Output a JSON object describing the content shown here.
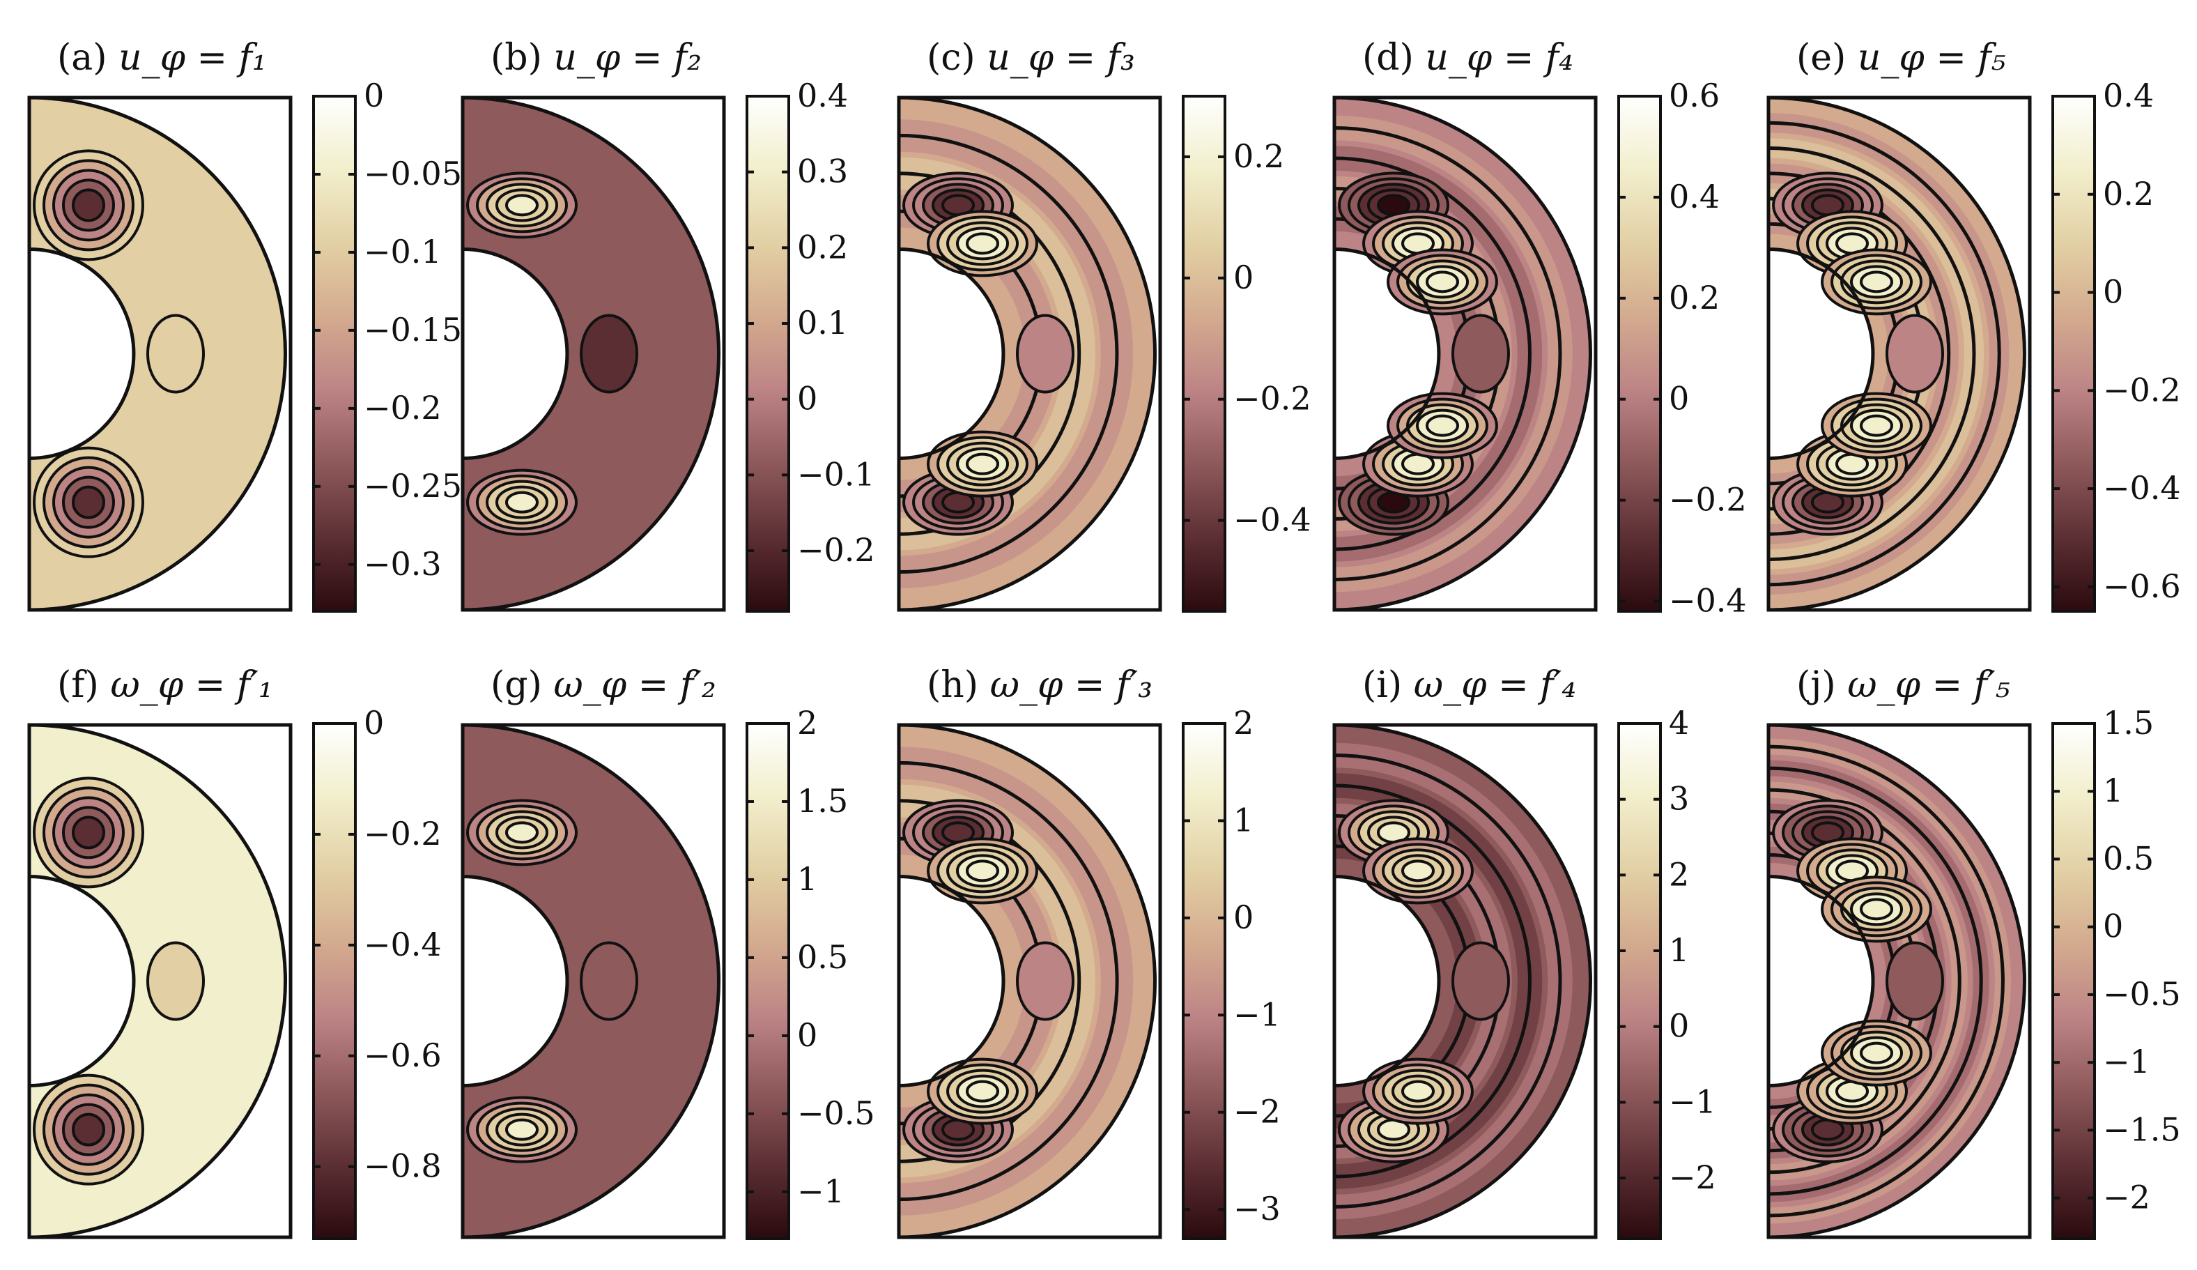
{
  "colormap": [
    "#2a0a0e",
    "#5b2e33",
    "#8f5a5c",
    "#bd8486",
    "#d3aa8e",
    "#e2cfa4",
    "#f2efcd",
    "#ffffff"
  ],
  "chart_data": [
    {
      "id": "a",
      "type": "heatmap",
      "tag": "(a)",
      "title": "u_φ = f₁",
      "colorbar": {
        "min": -0.33,
        "max": 0,
        "ticks": [
          0,
          -0.05,
          -0.1,
          -0.15,
          -0.2,
          -0.25,
          -0.3
        ],
        "labels": [
          "0",
          "−0.05",
          "−0.1",
          "−0.15",
          "−0.2",
          "−0.25",
          "−0.3"
        ]
      }
    },
    {
      "id": "b",
      "type": "heatmap",
      "tag": "(b)",
      "title": "u_φ = f₂",
      "colorbar": {
        "min": -0.28,
        "max": 0.4,
        "ticks": [
          0.4,
          0.3,
          0.2,
          0.1,
          0,
          -0.1,
          -0.2
        ],
        "labels": [
          "0.4",
          "0.3",
          "0.2",
          "0.1",
          "0",
          "−0.1",
          "−0.2"
        ]
      }
    },
    {
      "id": "c",
      "type": "heatmap",
      "tag": "(c)",
      "title": "u_φ = f₃",
      "colorbar": {
        "min": -0.55,
        "max": 0.3,
        "ticks": [
          0.2,
          0,
          -0.2,
          -0.4
        ],
        "labels": [
          "0.2",
          "0",
          "−0.2",
          "−0.4"
        ]
      }
    },
    {
      "id": "d",
      "type": "heatmap",
      "tag": "(d)",
      "title": "u_φ = f₄",
      "colorbar": {
        "min": -0.42,
        "max": 0.6,
        "ticks": [
          0.6,
          0.4,
          0.2,
          0,
          -0.2,
          -0.4
        ],
        "labels": [
          "0.6",
          "0.4",
          "0.2",
          "0",
          "−0.2",
          "−0.4"
        ]
      }
    },
    {
      "id": "e",
      "type": "heatmap",
      "tag": "(e)",
      "title": "u_φ = f₅",
      "colorbar": {
        "min": -0.65,
        "max": 0.4,
        "ticks": [
          0.4,
          0.2,
          0,
          -0.2,
          -0.4,
          -0.6
        ],
        "labels": [
          "0.4",
          "0.2",
          "0",
          "−0.2",
          "−0.4",
          "−0.6"
        ]
      }
    },
    {
      "id": "f",
      "type": "heatmap",
      "tag": "(f)",
      "title": "ω_φ = f′₁",
      "colorbar": {
        "min": -0.93,
        "max": 0,
        "ticks": [
          0,
          -0.2,
          -0.4,
          -0.6,
          -0.8
        ],
        "labels": [
          "0",
          "−0.2",
          "−0.4",
          "−0.6",
          "−0.8"
        ]
      }
    },
    {
      "id": "g",
      "type": "heatmap",
      "tag": "(g)",
      "title": "ω_φ = f′₂",
      "colorbar": {
        "min": -1.3,
        "max": 2,
        "ticks": [
          2,
          1.5,
          1,
          0.5,
          0,
          -0.5,
          -1
        ],
        "labels": [
          "2",
          "1.5",
          "1",
          "0.5",
          "0",
          "−0.5",
          "−1"
        ]
      }
    },
    {
      "id": "h",
      "type": "heatmap",
      "tag": "(h)",
      "title": "ω_φ = f′₃",
      "colorbar": {
        "min": -3.3,
        "max": 2,
        "ticks": [
          2,
          1,
          0,
          -1,
          -2,
          -3
        ],
        "labels": [
          "2",
          "1",
          "0",
          "−1",
          "−2",
          "−3"
        ]
      }
    },
    {
      "id": "i",
      "type": "heatmap",
      "tag": "(i)",
      "title": "ω_φ = f′₄",
      "colorbar": {
        "min": -2.8,
        "max": 4,
        "ticks": [
          4,
          3,
          2,
          1,
          0,
          -1,
          -2
        ],
        "labels": [
          "4",
          "3",
          "2",
          "1",
          "0",
          "−1",
          "−2"
        ]
      }
    },
    {
      "id": "j",
      "type": "heatmap",
      "tag": "(j)",
      "title": "ω_φ = f′₅",
      "colorbar": {
        "min": -2.3,
        "max": 1.5,
        "ticks": [
          1.5,
          1,
          0.5,
          0,
          -0.5,
          -1,
          -1.5,
          -2
        ],
        "labels": [
          "1.5",
          "1",
          "0.5",
          "0",
          "−0.5",
          "−1",
          "−1.5",
          "−2"
        ]
      }
    }
  ]
}
